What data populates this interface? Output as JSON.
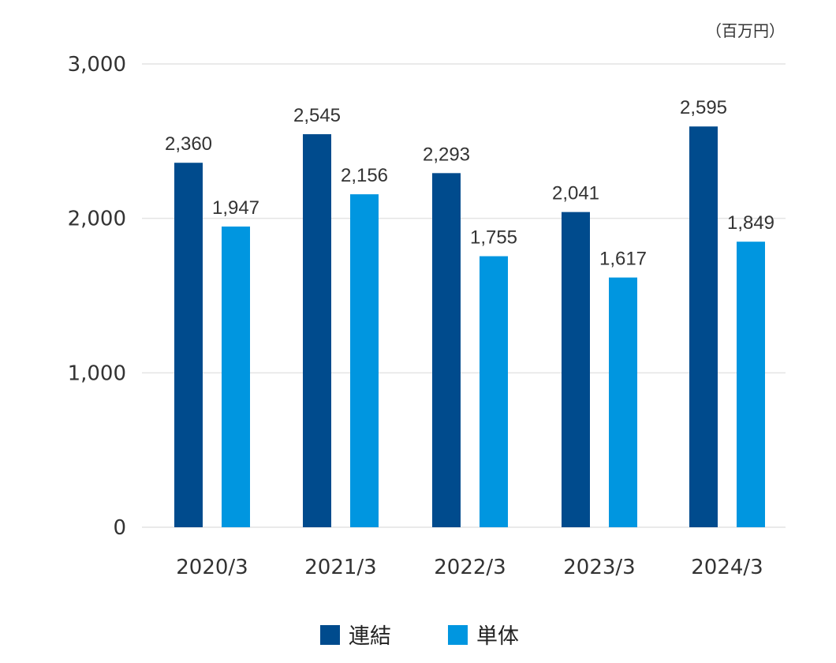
{
  "chart_data": {
    "type": "bar",
    "title": "",
    "unit_label": "（百万円）",
    "xlabel": "",
    "ylabel": "",
    "ylim": [
      0,
      3000
    ],
    "yticks": [
      0,
      1000,
      2000,
      3000
    ],
    "ytick_labels": [
      "0",
      "1,000",
      "2,000",
      "3,000"
    ],
    "grid": true,
    "categories": [
      "2020/3",
      "2021/3",
      "2022/3",
      "2023/3",
      "2024/3"
    ],
    "series": [
      {
        "name": "連結",
        "color": "#004b8d",
        "values": [
          2360,
          2545,
          2293,
          2041,
          2595
        ],
        "labels": [
          "2,360",
          "2,545",
          "2,293",
          "2,041",
          "2,595"
        ]
      },
      {
        "name": "単体",
        "color": "#0096e0",
        "values": [
          1947,
          2156,
          1755,
          1617,
          1849
        ],
        "labels": [
          "1,947",
          "2,156",
          "1,755",
          "1,617",
          "1,849"
        ]
      }
    ],
    "legend_position": "bottom-center"
  }
}
